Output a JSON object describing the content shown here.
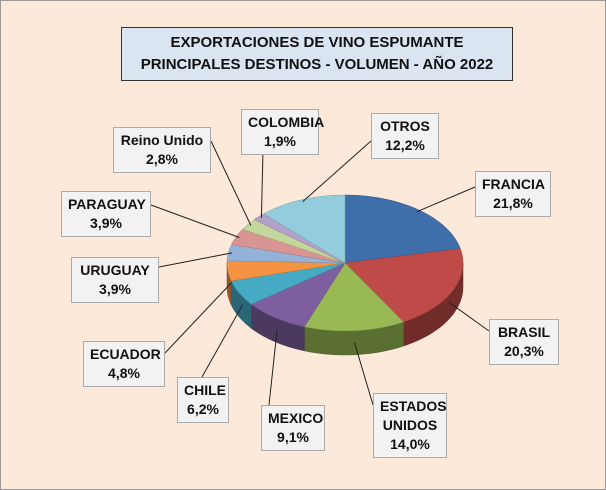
{
  "chart_data": {
    "type": "pie3d",
    "title": "EXPORTACIONES DE VINO ESPUMANTE",
    "subtitle": "PRINCIPALES DESTINOS - VOLUMEN - AÑO 2022",
    "categories": [
      "FRANCIA",
      "BRASIL",
      "ESTADOS UNIDOS",
      "MEXICO",
      "CHILE",
      "ECUADOR",
      "URUGUAY",
      "PARAGUAY",
      "Reino Unido",
      "COLOMBIA",
      "OTROS"
    ],
    "values": [
      21.8,
      20.3,
      14.0,
      9.1,
      6.2,
      4.8,
      3.9,
      3.9,
      2.8,
      1.9,
      12.2
    ],
    "value_labels": [
      "21,8%",
      "20,3%",
      "14,0%",
      "9,1%",
      "6,2%",
      "4,8%",
      "3,9%",
      "3,9%",
      "2,8%",
      "1,9%",
      "12,2%"
    ],
    "colors": [
      "#3f6faa",
      "#be4b48",
      "#98b954",
      "#7d5fa0",
      "#46aac4",
      "#f59343",
      "#94b1d8",
      "#d99593",
      "#c3d69b",
      "#b3a2c7",
      "#93cddd"
    ]
  }
}
